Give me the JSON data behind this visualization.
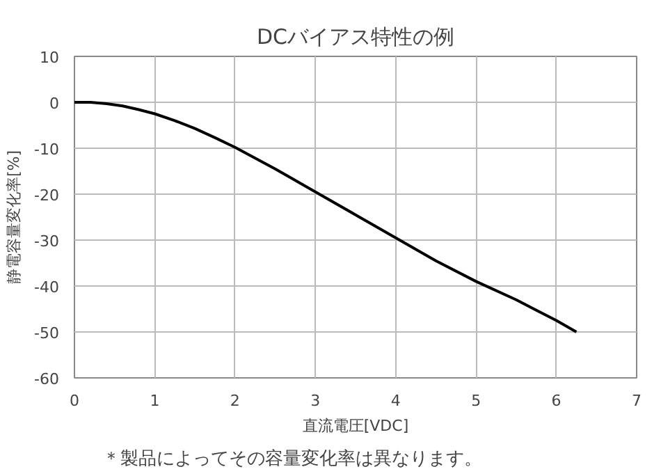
{
  "chart_data": {
    "type": "line",
    "title": "DCバイアス特性の例",
    "xlabel": "直流電圧[VDC]",
    "ylabel": "静電容量変化率[%]",
    "annotations": [
      "＊製品によってその容量変化率は異なります。"
    ],
    "x": [
      0,
      0.2,
      0.4,
      0.6,
      0.8,
      1,
      1.25,
      1.5,
      1.75,
      2,
      2.5,
      3,
      3.5,
      4,
      4.5,
      5,
      5.5,
      6,
      6.25
    ],
    "series": [
      {
        "color": "#000000",
        "values": [
          0,
          0,
          -0.3,
          -0.8,
          -1.6,
          -2.5,
          -4,
          -5.7,
          -7.7,
          -9.8,
          -14.5,
          -19.5,
          -24.5,
          -29.5,
          -34.5,
          -39,
          -43,
          -47.5,
          -50
        ]
      }
    ],
    "xlim": [
      0,
      7
    ],
    "ylim": [
      -60,
      10
    ],
    "xticks": [
      0,
      1,
      2,
      3,
      4,
      5,
      6,
      7
    ],
    "yticks": [
      -60,
      -50,
      -40,
      -30,
      -20,
      -10,
      0,
      10
    ],
    "grid": true,
    "marker": "none",
    "line_style": "solid"
  }
}
